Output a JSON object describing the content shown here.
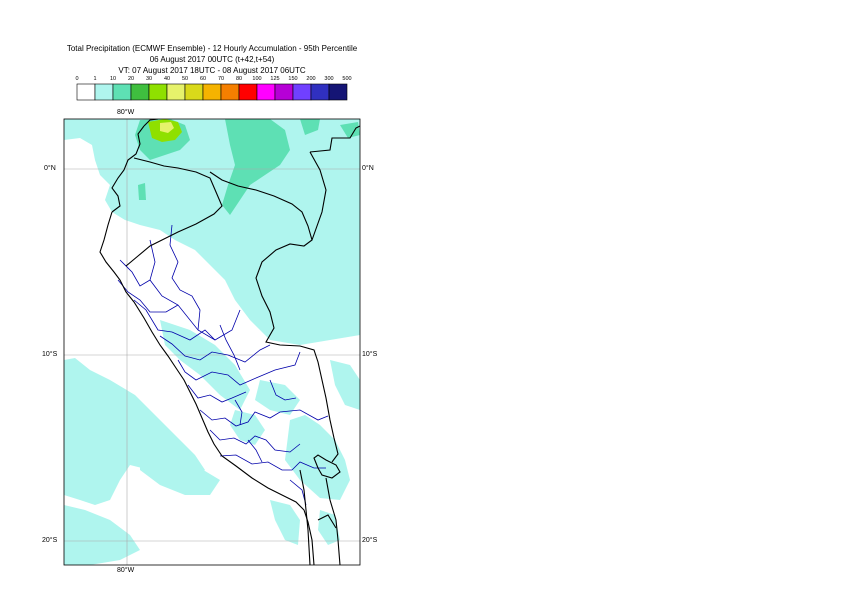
{
  "title": {
    "line1": "Total Precipitation (ECMWF Ensemble) - 12 Hourly Accumulation - 95th Percentile",
    "line2": "06 August 2017 00UTC (t+42,t+54)",
    "line3": "VT: 07 August 2017 18UTC - 08 August 2017 06UTC"
  },
  "legend": {
    "thresholds": [
      "0",
      "1",
      "10",
      "20",
      "30",
      "40",
      "50",
      "60",
      "70",
      "80",
      "100",
      "125",
      "150",
      "200",
      "300",
      "500"
    ],
    "colors": [
      "#ffffff",
      "#aff5ee",
      "#5ee0b4",
      "#3fbf3f",
      "#8fe000",
      "#e6f26b",
      "#d9d91a",
      "#f5b300",
      "#f57f00",
      "#ff0000",
      "#ff00ff",
      "#b600d6",
      "#7040ff",
      "#3030c0",
      "#151575"
    ]
  },
  "map": {
    "lon_label_top": "80°W",
    "lon_label_bottom": "80°W",
    "lat_labels": [
      "0°N",
      "10°S",
      "20°S"
    ],
    "colors": {
      "precip_light": "#aff5ee",
      "precip_moderate": "#5ee0b4",
      "precip_heavy": "#8fe000",
      "precip_peak": "#e6f26b",
      "country_border": "#000000",
      "region_border": "#0000aa",
      "grid": "#aaaaaa"
    }
  }
}
